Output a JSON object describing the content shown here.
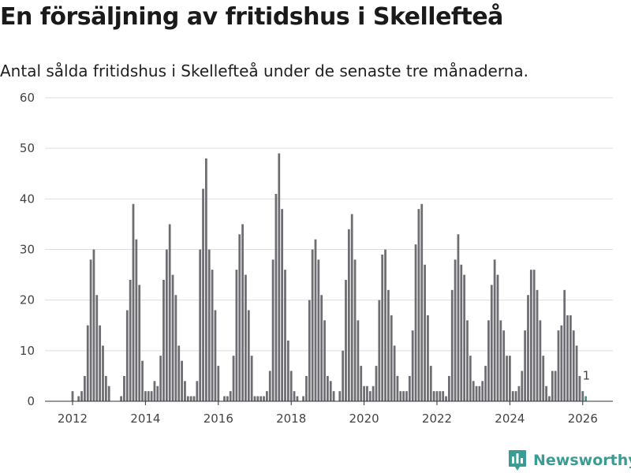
{
  "title": "En försäljning av fritidshus i Skellefteå",
  "subtitle": "Antal sålda fritidshus i Skellefteå under de senaste tre månaderna.",
  "brand": {
    "name": "Newsworthy",
    "icon": "newsworthy-logo-icon",
    "color": "#3b9c93"
  },
  "colors": {
    "bar": "#6e6d72",
    "highlight": "#3b9c93",
    "grid": "#dddddd",
    "axis": "#333333"
  },
  "chart_data": {
    "type": "bar",
    "title": "En försäljning av fritidshus i Skellefteå",
    "xlabel": "",
    "ylabel": "",
    "ylim": [
      0,
      60
    ],
    "yticks": [
      0,
      10,
      20,
      30,
      40,
      50,
      60
    ],
    "xticks": [
      2012,
      2014,
      2016,
      2018,
      2020,
      2022,
      2024,
      2026
    ],
    "x_start": 2011.5,
    "period": "monthly",
    "values": [
      0,
      0,
      0,
      0,
      0,
      0,
      2,
      0,
      1,
      2,
      5,
      15,
      28,
      30,
      21,
      15,
      11,
      5,
      3,
      0,
      0,
      0,
      1,
      5,
      18,
      24,
      39,
      32,
      23,
      8,
      2,
      2,
      2,
      4,
      3,
      9,
      24,
      30,
      35,
      25,
      21,
      11,
      8,
      4,
      1,
      1,
      1,
      4,
      30,
      42,
      48,
      30,
      26,
      18,
      7,
      0,
      1,
      1,
      2,
      9,
      26,
      33,
      35,
      25,
      18,
      9,
      1,
      1,
      1,
      1,
      2,
      6,
      28,
      41,
      49,
      38,
      26,
      12,
      6,
      2,
      1,
      0,
      1,
      5,
      20,
      30,
      32,
      28,
      21,
      16,
      5,
      4,
      2,
      0,
      2,
      10,
      24,
      34,
      37,
      28,
      16,
      7,
      3,
      3,
      2,
      3,
      7,
      20,
      29,
      30,
      22,
      17,
      11,
      5,
      2,
      2,
      2,
      5,
      14,
      31,
      38,
      39,
      27,
      17,
      7,
      2,
      2,
      2,
      2,
      1,
      5,
      22,
      28,
      33,
      27,
      25,
      16,
      9,
      4,
      3,
      3,
      4,
      7,
      16,
      23,
      28,
      25,
      16,
      14,
      9,
      9,
      2,
      2,
      3,
      6,
      14,
      21,
      26,
      26,
      22,
      16,
      9,
      3,
      1,
      6,
      6,
      14,
      15,
      22,
      17,
      17,
      14,
      11,
      5,
      2,
      1
    ],
    "highlight_last": true,
    "last_value_label": "1"
  }
}
